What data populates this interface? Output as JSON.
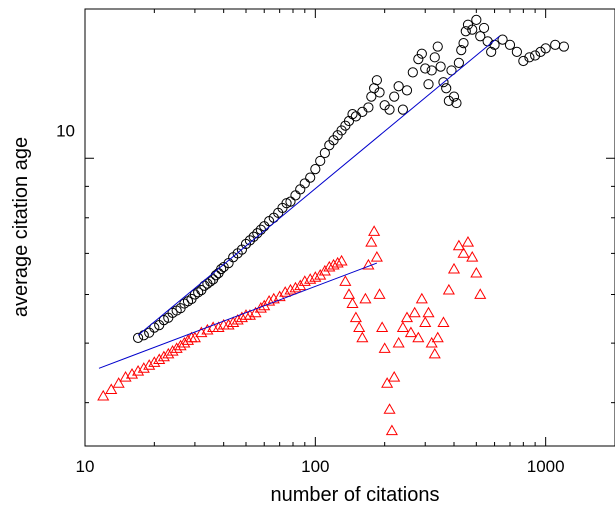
{
  "chart_data": {
    "type": "scatter",
    "title": "",
    "xlabel": "number of citations",
    "ylabel": "average citation age",
    "xscale": "log",
    "yscale": "log",
    "xlim": [
      10,
      2000
    ],
    "ylim": [
      3.4,
      17.5
    ],
    "x_ticks": [
      {
        "value": 10,
        "label": "10"
      },
      {
        "value": 100,
        "label": "100"
      },
      {
        "value": 1000,
        "label": "1000"
      }
    ],
    "y_ticks": [
      {
        "value": 10,
        "label": "10"
      }
    ],
    "y_minor_ticks": [
      4,
      5,
      6,
      7,
      8,
      9
    ],
    "grid": false,
    "legend": "none",
    "colors": {
      "circles": "#000000",
      "triangles": "#ff0000",
      "fit": "#0000cc"
    },
    "series": [
      {
        "marker": "circle",
        "color": "#000000",
        "points": [
          [
            17,
            5.1
          ],
          [
            18,
            5.15
          ],
          [
            19,
            5.2
          ],
          [
            20,
            5.3
          ],
          [
            21,
            5.35
          ],
          [
            22,
            5.45
          ],
          [
            23,
            5.5
          ],
          [
            24,
            5.6
          ],
          [
            25,
            5.65
          ],
          [
            26,
            5.7
          ],
          [
            27,
            5.8
          ],
          [
            28,
            5.85
          ],
          [
            29,
            5.9
          ],
          [
            30,
            6.0
          ],
          [
            31,
            6.05
          ],
          [
            32,
            6.1
          ],
          [
            33,
            6.2
          ],
          [
            34,
            6.25
          ],
          [
            35,
            6.3
          ],
          [
            36,
            6.35
          ],
          [
            37,
            6.45
          ],
          [
            38,
            6.5
          ],
          [
            39,
            6.6
          ],
          [
            40,
            6.65
          ],
          [
            42,
            6.75
          ],
          [
            44,
            6.9
          ],
          [
            46,
            7.0
          ],
          [
            48,
            7.1
          ],
          [
            50,
            7.25
          ],
          [
            52,
            7.35
          ],
          [
            54,
            7.45
          ],
          [
            56,
            7.55
          ],
          [
            58,
            7.65
          ],
          [
            60,
            7.75
          ],
          [
            63,
            7.9
          ],
          [
            66,
            8.0
          ],
          [
            69,
            8.15
          ],
          [
            72,
            8.3
          ],
          [
            75,
            8.45
          ],
          [
            78,
            8.5
          ],
          [
            82,
            8.7
          ],
          [
            86,
            8.9
          ],
          [
            90,
            9.1
          ],
          [
            95,
            9.3
          ],
          [
            100,
            9.6
          ],
          [
            105,
            9.9
          ],
          [
            110,
            10.2
          ],
          [
            115,
            10.5
          ],
          [
            120,
            10.7
          ],
          [
            125,
            10.9
          ],
          [
            130,
            11.1
          ],
          [
            135,
            11.3
          ],
          [
            140,
            11.5
          ],
          [
            145,
            11.8
          ],
          [
            150,
            11.7
          ],
          [
            160,
            11.9
          ],
          [
            170,
            12.1
          ],
          [
            175,
            12.6
          ],
          [
            180,
            13.0
          ],
          [
            185,
            13.4
          ],
          [
            190,
            12.8
          ],
          [
            200,
            12.2
          ],
          [
            210,
            12.0
          ],
          [
            220,
            12.6
          ],
          [
            230,
            13.1
          ],
          [
            240,
            12.0
          ],
          [
            250,
            12.9
          ],
          [
            265,
            13.8
          ],
          [
            280,
            14.5
          ],
          [
            290,
            14.8
          ],
          [
            300,
            14.0
          ],
          [
            310,
            13.2
          ],
          [
            320,
            13.9
          ],
          [
            330,
            14.6
          ],
          [
            340,
            15.2
          ],
          [
            350,
            14.1
          ],
          [
            360,
            13.3
          ],
          [
            370,
            13.0
          ],
          [
            380,
            12.4
          ],
          [
            390,
            13.9
          ],
          [
            400,
            12.6
          ],
          [
            410,
            12.3
          ],
          [
            420,
            14.3
          ],
          [
            430,
            15.0
          ],
          [
            440,
            15.4
          ],
          [
            450,
            16.1
          ],
          [
            460,
            16.5
          ],
          [
            480,
            16.2
          ],
          [
            500,
            16.8
          ],
          [
            520,
            15.8
          ],
          [
            540,
            16.3
          ],
          [
            560,
            15.5
          ],
          [
            580,
            14.9
          ],
          [
            600,
            15.3
          ],
          [
            650,
            15.6
          ],
          [
            700,
            15.3
          ],
          [
            750,
            14.9
          ],
          [
            800,
            14.4
          ],
          [
            850,
            14.6
          ],
          [
            900,
            14.7
          ],
          [
            950,
            14.9
          ],
          [
            1000,
            15.1
          ],
          [
            1100,
            15.3
          ],
          [
            1200,
            15.2
          ]
        ]
      },
      {
        "marker": "triangle",
        "color": "#ff0000",
        "points": [
          [
            12,
            4.1
          ],
          [
            13,
            4.2
          ],
          [
            14,
            4.3
          ],
          [
            15,
            4.4
          ],
          [
            16,
            4.45
          ],
          [
            17,
            4.5
          ],
          [
            18,
            4.55
          ],
          [
            19,
            4.6
          ],
          [
            20,
            4.65
          ],
          [
            21,
            4.7
          ],
          [
            22,
            4.75
          ],
          [
            23,
            4.8
          ],
          [
            24,
            4.85
          ],
          [
            25,
            4.9
          ],
          [
            26,
            4.95
          ],
          [
            27,
            5.0
          ],
          [
            28,
            5.05
          ],
          [
            29,
            5.1
          ],
          [
            30,
            5.1
          ],
          [
            32,
            5.2
          ],
          [
            34,
            5.25
          ],
          [
            36,
            5.3
          ],
          [
            38,
            5.3
          ],
          [
            40,
            5.35
          ],
          [
            42,
            5.35
          ],
          [
            44,
            5.4
          ],
          [
            46,
            5.45
          ],
          [
            48,
            5.5
          ],
          [
            50,
            5.55
          ],
          [
            52,
            5.55
          ],
          [
            55,
            5.6
          ],
          [
            58,
            5.7
          ],
          [
            60,
            5.75
          ],
          [
            63,
            5.85
          ],
          [
            66,
            5.9
          ],
          [
            70,
            5.95
          ],
          [
            74,
            6.05
          ],
          [
            78,
            6.1
          ],
          [
            82,
            6.15
          ],
          [
            86,
            6.2
          ],
          [
            90,
            6.3
          ],
          [
            95,
            6.35
          ],
          [
            100,
            6.4
          ],
          [
            105,
            6.45
          ],
          [
            110,
            6.55
          ],
          [
            115,
            6.65
          ],
          [
            120,
            6.7
          ],
          [
            125,
            6.75
          ],
          [
            130,
            6.8
          ],
          [
            135,
            6.3
          ],
          [
            140,
            6.0
          ],
          [
            145,
            5.8
          ],
          [
            150,
            5.5
          ],
          [
            155,
            5.3
          ],
          [
            160,
            5.1
          ],
          [
            165,
            5.9
          ],
          [
            170,
            6.7
          ],
          [
            175,
            7.3
          ],
          [
            180,
            7.6
          ],
          [
            185,
            6.9
          ],
          [
            190,
            6.0
          ],
          [
            195,
            5.3
          ],
          [
            200,
            4.9
          ],
          [
            205,
            4.3
          ],
          [
            210,
            3.9
          ],
          [
            215,
            3.6
          ],
          [
            220,
            4.4
          ],
          [
            230,
            5.0
          ],
          [
            240,
            5.3
          ],
          [
            250,
            5.5
          ],
          [
            260,
            5.2
          ],
          [
            270,
            5.6
          ],
          [
            280,
            5.1
          ],
          [
            290,
            5.9
          ],
          [
            300,
            5.4
          ],
          [
            310,
            5.6
          ],
          [
            320,
            5.0
          ],
          [
            330,
            4.8
          ],
          [
            340,
            5.1
          ],
          [
            360,
            5.4
          ],
          [
            380,
            6.1
          ],
          [
            400,
            6.6
          ],
          [
            420,
            7.2
          ],
          [
            440,
            7.0
          ],
          [
            460,
            7.3
          ],
          [
            480,
            6.9
          ],
          [
            500,
            6.5
          ],
          [
            520,
            6.0
          ]
        ]
      },
      {
        "marker": "line",
        "color": "#0000cc",
        "points": [
          [
            17,
            5.15
          ],
          [
            630,
            15.8
          ]
        ]
      },
      {
        "marker": "line",
        "color": "#0000cc",
        "points": [
          [
            11.5,
            4.55
          ],
          [
            185,
            6.75
          ]
        ]
      }
    ]
  }
}
